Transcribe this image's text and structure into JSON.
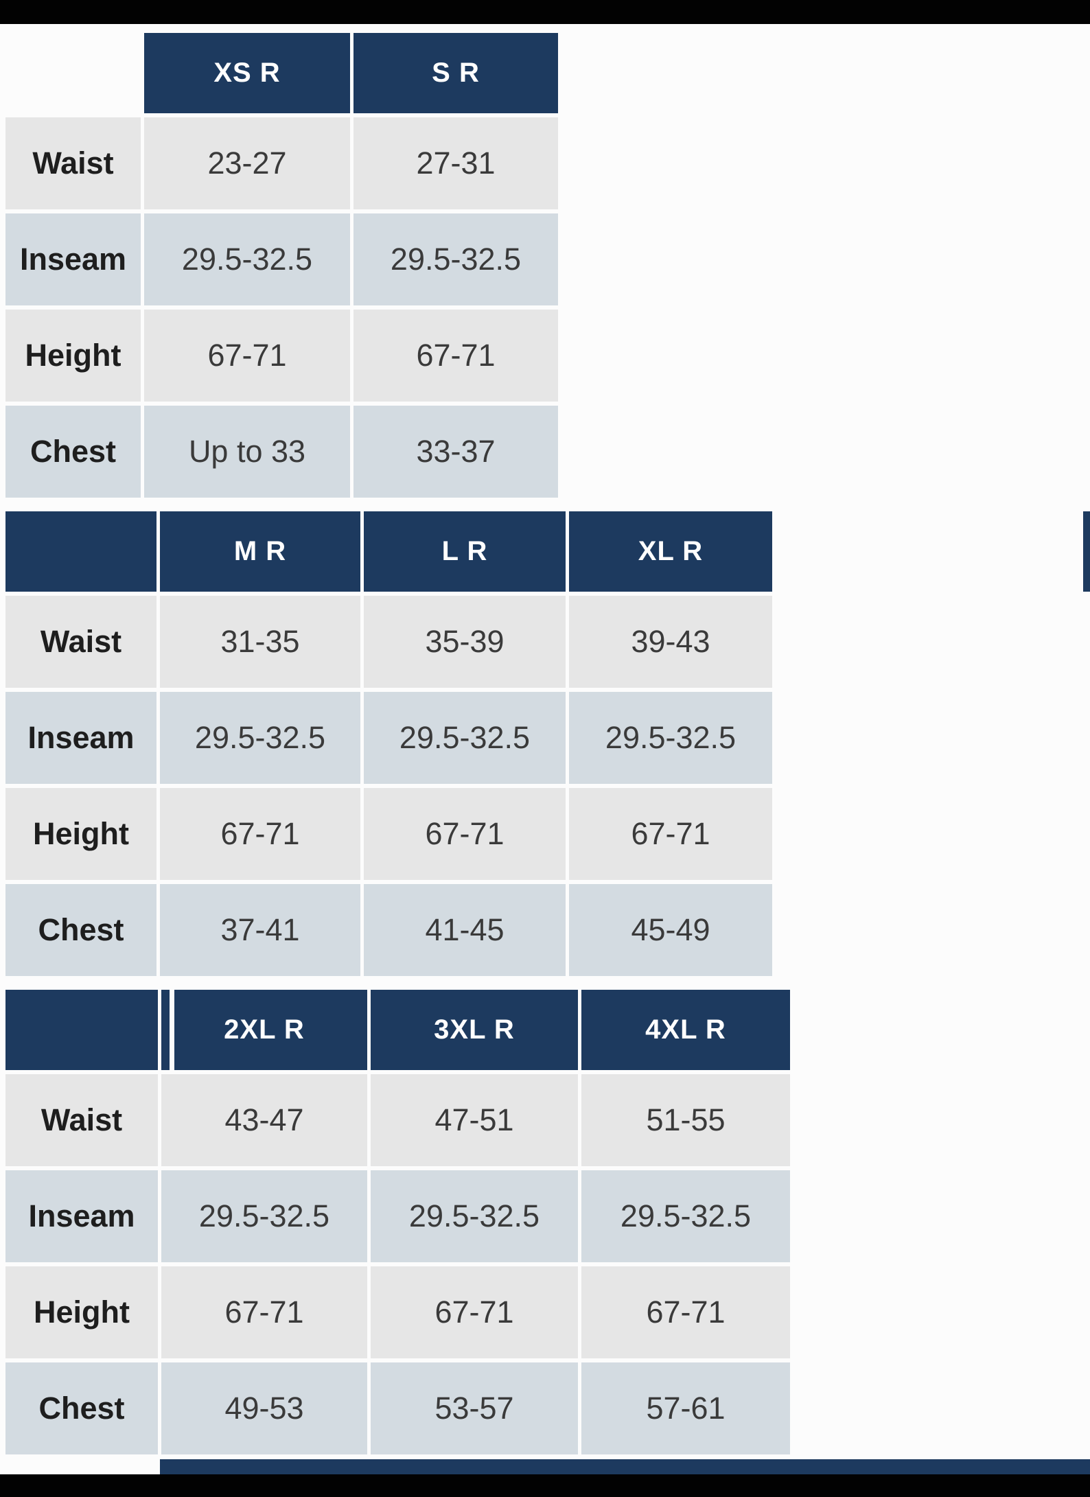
{
  "colors": {
    "header_navy": "#1d3a5f",
    "row_light": "#e6e6e6",
    "row_blue_gray": "#d3dbe1",
    "letterbox_black": "#020202",
    "page_background": "#fcfcfc"
  },
  "chart_data": [
    {
      "type": "table",
      "columns": [
        "XS R",
        "S R"
      ],
      "row_labels": [
        "Waist",
        "Inseam",
        "Height",
        "Chest"
      ],
      "rows": [
        [
          "23-27",
          "27-31"
        ],
        [
          "29.5-32.5",
          "29.5-32.5"
        ],
        [
          "67-71",
          "67-71"
        ],
        [
          "Up to 33",
          "33-37"
        ]
      ]
    },
    {
      "type": "table",
      "columns": [
        "M R",
        "L R",
        "XL R"
      ],
      "row_labels": [
        "Waist",
        "Inseam",
        "Height",
        "Chest"
      ],
      "rows": [
        [
          "31-35",
          "35-39",
          "39-43"
        ],
        [
          "29.5-32.5",
          "29.5-32.5",
          "29.5-32.5"
        ],
        [
          "67-71",
          "67-71",
          "67-71"
        ],
        [
          "37-41",
          "41-45",
          "45-49"
        ]
      ]
    },
    {
      "type": "table",
      "columns": [
        "2XL R",
        "3XL R",
        "4XL R"
      ],
      "row_labels": [
        "Waist",
        "Inseam",
        "Height",
        "Chest"
      ],
      "rows": [
        [
          "43-47",
          "47-51",
          "51-55"
        ],
        [
          "29.5-32.5",
          "29.5-32.5",
          "29.5-32.5"
        ],
        [
          "67-71",
          "67-71",
          "67-71"
        ],
        [
          "49-53",
          "53-57",
          "57-61"
        ]
      ]
    }
  ]
}
